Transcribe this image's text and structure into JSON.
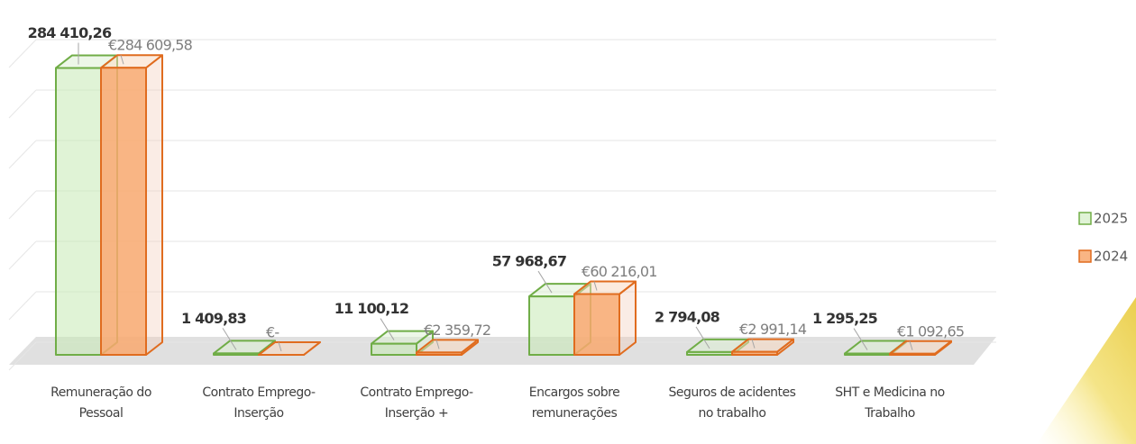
{
  "chart_data": {
    "type": "bar3d",
    "categories": [
      "Remuneração do Pessoal",
      "Contrato Emprego-Inserção",
      "Contrato Emprego-Inserção +",
      "Encargos sobre remunerações",
      "Seguros de acidentes no trabalho",
      "SHT e Medicina no Trabalho"
    ],
    "series": [
      {
        "name": "2025",
        "color": "#70ad47",
        "values": [
          284410.26,
          1409.83,
          11100.12,
          57968.67,
          2794.08,
          1295.25
        ],
        "value_labels": [
          "284 410,26",
          "1 409,83",
          "11 100,12",
          "57 968,67",
          "2 794,08",
          "1 295,25"
        ]
      },
      {
        "name": "2024",
        "color": "#e06c1f",
        "values": [
          284609.58,
          0,
          2359.72,
          60216.01,
          2991.14,
          1092.65
        ],
        "value_labels": [
          "€284 609,58",
          "€-",
          "€2 359,72",
          "€60 216,01",
          "€2 991,14",
          "€1 092,65"
        ]
      }
    ],
    "ylim": [
      0,
      300000
    ],
    "yticks": [
      0,
      50000,
      100000,
      150000,
      200000,
      250000,
      300000
    ],
    "grid": true,
    "legend": "right"
  }
}
